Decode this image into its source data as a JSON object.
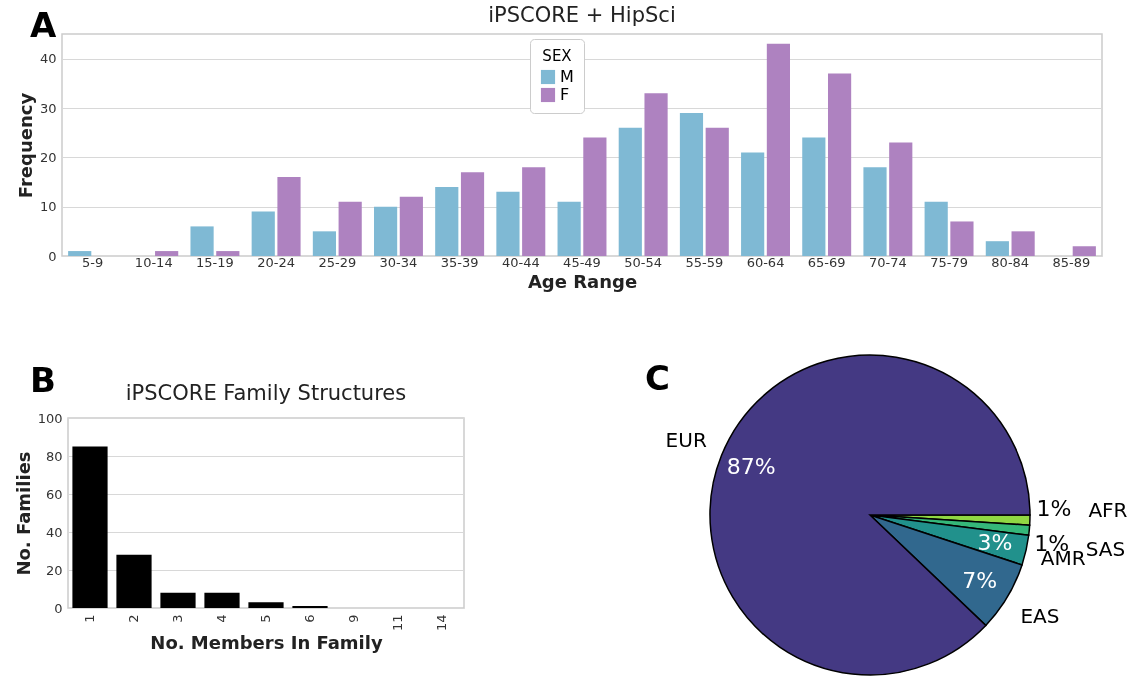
{
  "chart_data": [
    {
      "type": "bar",
      "title": "iPSCORE + HipSci",
      "xlabel": "Age Range",
      "ylabel": "Frequency",
      "legend_title": "SEX",
      "annotations": [
        "A"
      ],
      "categories": [
        "5-9",
        "10-14",
        "15-19",
        "20-24",
        "25-29",
        "30-34",
        "35-39",
        "40-44",
        "45-49",
        "50-54",
        "55-59",
        "60-64",
        "65-69",
        "70-74",
        "75-79",
        "80-84",
        "85-89"
      ],
      "series": [
        {
          "name": "M",
          "color": "#7fb9d4",
          "values": [
            1,
            0,
            6,
            9,
            5,
            10,
            14,
            13,
            11,
            26,
            29,
            21,
            24,
            18,
            11,
            3,
            0
          ]
        },
        {
          "name": "F",
          "color": "#ae82c0",
          "values": [
            0,
            1,
            1,
            16,
            11,
            12,
            17,
            18,
            24,
            33,
            26,
            43,
            37,
            23,
            7,
            5,
            2
          ]
        }
      ],
      "ylim": [
        0,
        45
      ],
      "yticks": [
        0,
        10,
        20,
        30,
        40
      ],
      "grid": "y",
      "legend": "top"
    },
    {
      "type": "bar",
      "title": "iPSCORE Family Structures",
      "xlabel": "No. Members In Family",
      "ylabel": "No. Families",
      "annotations": [
        "B"
      ],
      "categories": [
        "1",
        "2",
        "3",
        "4",
        "5",
        "6",
        "9",
        "11",
        "14"
      ],
      "values": [
        85,
        28,
        8,
        8,
        3,
        1,
        0,
        0,
        0
      ],
      "color": "#000000",
      "ylim": [
        0,
        100
      ],
      "yticks": [
        0,
        20,
        40,
        60,
        80,
        100
      ],
      "grid": "y"
    },
    {
      "type": "pie",
      "annotations": [
        "C"
      ],
      "categories": [
        "AFR",
        "SAS",
        "AMR",
        "EAS",
        "EUR"
      ],
      "values": [
        1,
        1,
        3,
        7,
        87
      ],
      "colors": [
        "#90d743",
        "#35b779",
        "#21918c",
        "#31688e",
        "#443983"
      ],
      "value_labels": [
        "1%",
        "1%",
        "3%",
        "7%",
        "87%"
      ]
    }
  ]
}
